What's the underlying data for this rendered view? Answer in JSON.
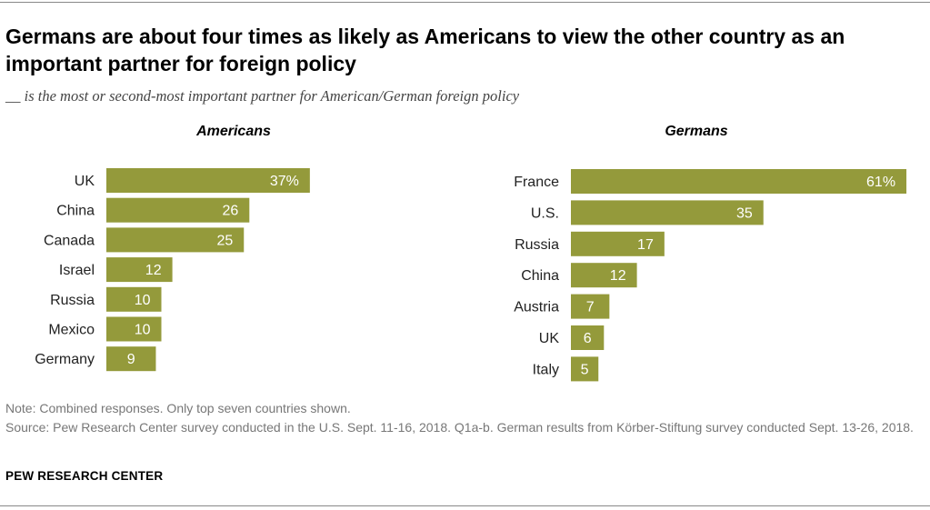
{
  "header": {
    "title": "Germans are about four times as likely as Americans to view the other country as an important partner for foreign policy",
    "subtitle": "__ is the most or second-most important partner for American/German foreign policy"
  },
  "colors": {
    "bar": "#949a3b"
  },
  "chart_data": [
    {
      "type": "bar",
      "orientation": "horizontal",
      "title": "Americans",
      "categories": [
        "UK",
        "China",
        "Canada",
        "Israel",
        "Russia",
        "Mexico",
        "Germany"
      ],
      "values": [
        37,
        26,
        25,
        12,
        10,
        10,
        9
      ],
      "value_labels": [
        "37%",
        "26",
        "25",
        "12",
        "10",
        "10",
        "9"
      ],
      "xlim": [
        0,
        61
      ]
    },
    {
      "type": "bar",
      "orientation": "horizontal",
      "title": "Germans",
      "categories": [
        "France",
        "U.S.",
        "Russia",
        "China",
        "Austria",
        "UK",
        "Italy"
      ],
      "values": [
        61,
        35,
        17,
        12,
        7,
        6,
        5
      ],
      "value_labels": [
        "61%",
        "35",
        "17",
        "12",
        "7",
        "6",
        "5"
      ],
      "xlim": [
        0,
        61
      ]
    }
  ],
  "footer": {
    "note": "Note: Combined responses. Only top seven countries shown.",
    "source": "Source: Pew Research Center survey conducted in the U.S. Sept. 11-16, 2018. Q1a-b. German results from Körber-Stiftung survey conducted Sept. 13-26, 2018.",
    "credit": "PEW RESEARCH CENTER"
  }
}
